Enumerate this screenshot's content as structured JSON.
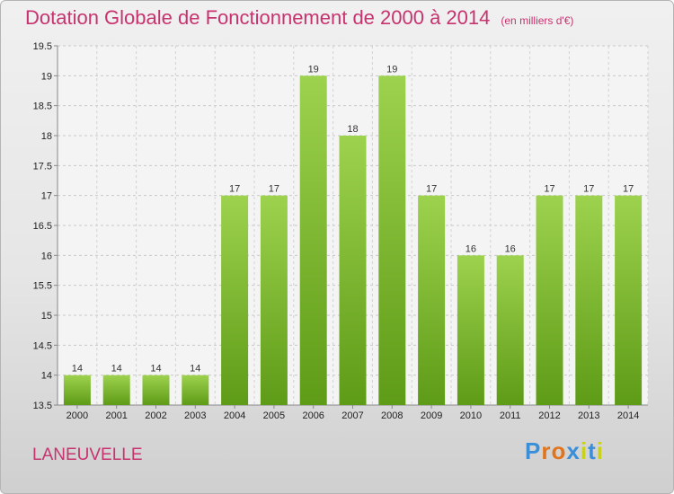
{
  "chart_data": {
    "type": "bar",
    "title": "Dotation Globale de Fonctionnement de 2000 à 2014",
    "subtitle": "(en milliers d'€)",
    "categories": [
      "2000",
      "2001",
      "2002",
      "2003",
      "2004",
      "2005",
      "2006",
      "2007",
      "2008",
      "2009",
      "2010",
      "2011",
      "2012",
      "2013",
      "2014"
    ],
    "values": [
      14,
      14,
      14,
      14,
      17,
      17,
      19,
      18,
      19,
      17,
      16,
      16,
      17,
      17,
      17
    ],
    "value_labels": [
      "14",
      "14",
      "14",
      "14",
      "17",
      "17",
      "19",
      "18",
      "19",
      "17",
      "16",
      "16",
      "17",
      "17",
      "17"
    ],
    "ylim": [
      13.5,
      19.5
    ],
    "yticks": [
      "13.5",
      "14",
      "14.5",
      "15",
      "15.5",
      "16",
      "16.5",
      "17",
      "17.5",
      "18",
      "18.5",
      "19",
      "19.5"
    ],
    "grid": true,
    "bar_color_top": "#9dd24e",
    "bar_color_bottom": "#5e9b16"
  },
  "footer": {
    "location": "LANEUVELLE",
    "logo_letters": [
      "P",
      "r",
      "o",
      "x",
      "i",
      "t",
      "i"
    ],
    "logo_colors": [
      "#3a8fd8",
      "#e0751d",
      "#e0751d",
      "#3a8fd8",
      "#c8d21c",
      "#3a8fd8",
      "#c8d21c"
    ]
  }
}
